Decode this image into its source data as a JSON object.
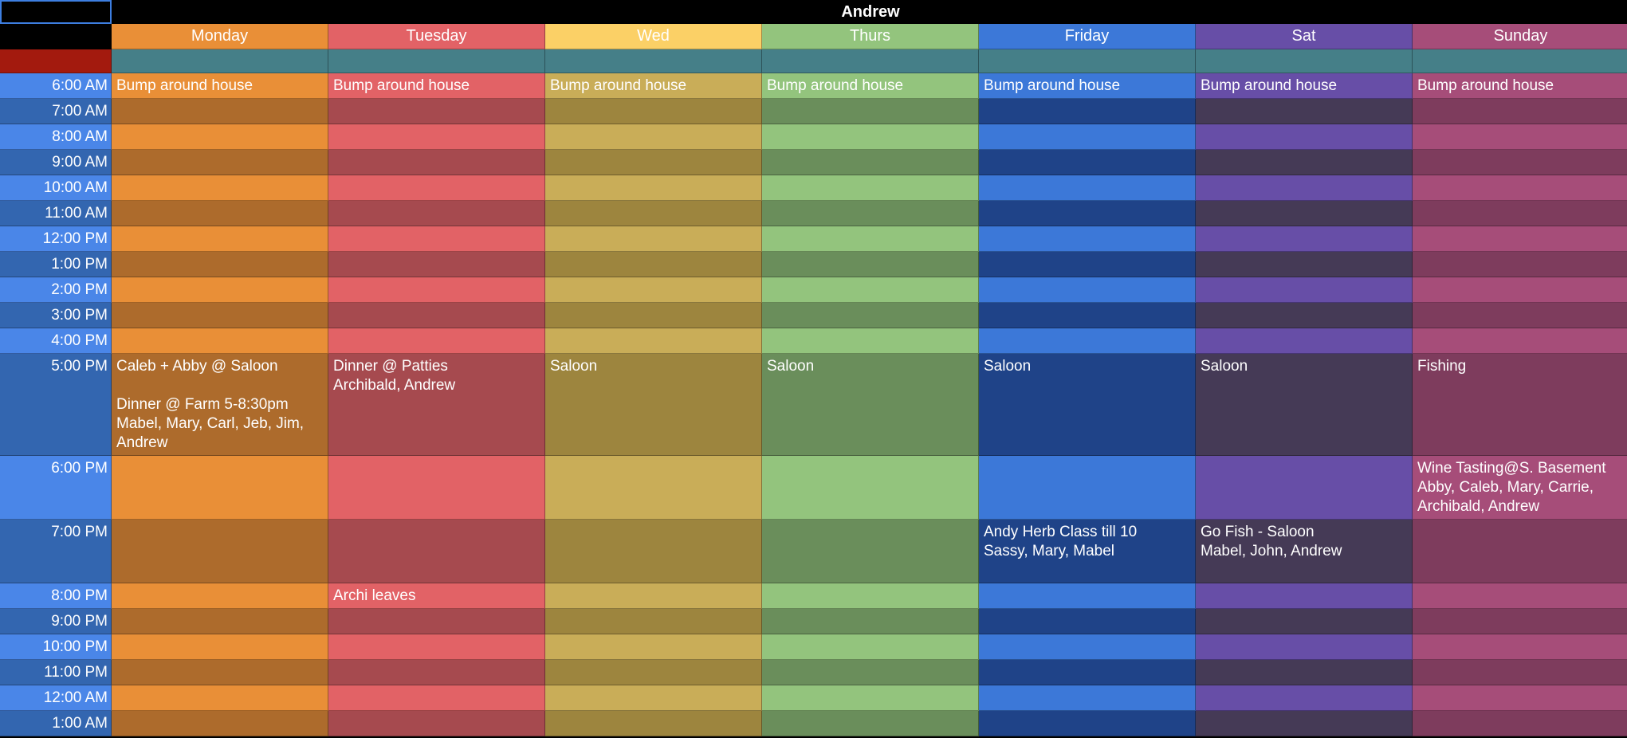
{
  "title": "Andrew",
  "days": [
    {
      "label": "Monday",
      "head": "#e98f37",
      "light": "#e98f37",
      "dark": "#ad6b2c"
    },
    {
      "label": "Tuesday",
      "head": "#e26266",
      "light": "#e26266",
      "dark": "#a64a4f"
    },
    {
      "label": "Wed",
      "head": "#fbd066",
      "light": "#c9ad58",
      "dark": "#9d853e"
    },
    {
      "label": "Thurs",
      "head": "#93c47d",
      "light": "#93c47d",
      "dark": "#6a8e5b"
    },
    {
      "label": "Friday",
      "head": "#3c78d8",
      "light": "#3c78d8",
      "dark": "#1f4388"
    },
    {
      "label": "Sat",
      "head": "#674ea7",
      "light": "#674ea7",
      "dark": "#453a56"
    },
    {
      "label": "Sunday",
      "head": "#a64d79",
      "light": "#a64d79",
      "dark": "#7e3c5d"
    }
  ],
  "time_colors": {
    "light": "#4a86e8",
    "dark": "#3366b0"
  },
  "header_row_colors": {
    "red": "#a31a0e",
    "teal": "#457f88"
  },
  "rows": [
    {
      "time": "6:00 AM",
      "events": [
        "Bump around house",
        "Bump around house",
        "Bump around house",
        "Bump around house",
        "Bump around house",
        "Bump around house",
        "Bump around house"
      ]
    },
    {
      "time": "7:00 AM",
      "events": [
        "",
        "",
        "",
        "",
        "",
        "",
        ""
      ]
    },
    {
      "time": "8:00 AM",
      "events": [
        "",
        "",
        "",
        "",
        "",
        "",
        ""
      ]
    },
    {
      "time": "9:00 AM",
      "events": [
        "",
        "",
        "",
        "",
        "",
        "",
        ""
      ]
    },
    {
      "time": "10:00 AM",
      "events": [
        "",
        "",
        "",
        "",
        "",
        "",
        ""
      ]
    },
    {
      "time": "11:00 AM",
      "events": [
        "",
        "",
        "",
        "",
        "",
        "",
        ""
      ]
    },
    {
      "time": "12:00 PM",
      "events": [
        "",
        "",
        "",
        "",
        "",
        "",
        ""
      ]
    },
    {
      "time": "1:00 PM",
      "events": [
        "",
        "",
        "",
        "",
        "",
        "",
        ""
      ]
    },
    {
      "time": "2:00 PM",
      "events": [
        "",
        "",
        "",
        "",
        "",
        "",
        ""
      ]
    },
    {
      "time": "3:00 PM",
      "events": [
        "",
        "",
        "",
        "",
        "",
        "",
        ""
      ]
    },
    {
      "time": "4:00 PM",
      "events": [
        "",
        "",
        "",
        "",
        "",
        "",
        ""
      ]
    },
    {
      "time": "5:00 PM",
      "events": [
        "Caleb + Abby @ Saloon\n\nDinner @ Farm 5-8:30pm\nMabel, Mary, Carl, Jeb, Jim, Andrew",
        "Dinner @ Patties\nArchibald, Andrew",
        "Saloon",
        "Saloon",
        "Saloon",
        "Saloon",
        "Fishing"
      ]
    },
    {
      "time": "6:00 PM",
      "events": [
        "",
        "",
        "",
        "",
        "",
        "",
        "Wine Tasting@S. Basement\nAbby, Caleb, Mary, Carrie, Archibald, Andrew"
      ]
    },
    {
      "time": "7:00 PM",
      "events": [
        "",
        "",
        "",
        "",
        "Andy Herb Class till 10\nSassy, Mary, Mabel",
        "Go Fish - Saloon\nMabel, John, Andrew",
        ""
      ]
    },
    {
      "time": "8:00 PM",
      "events": [
        "",
        "Archi leaves",
        "",
        "",
        "",
        "",
        ""
      ]
    },
    {
      "time": "9:00 PM",
      "events": [
        "",
        "",
        "",
        "",
        "",
        "",
        ""
      ]
    },
    {
      "time": "10:00 PM",
      "events": [
        "",
        "",
        "",
        "",
        "",
        "",
        ""
      ]
    },
    {
      "time": "11:00 PM",
      "events": [
        "",
        "",
        "",
        "",
        "",
        "",
        ""
      ]
    },
    {
      "time": "12:00 AM",
      "events": [
        "",
        "",
        "",
        "",
        "",
        "",
        ""
      ]
    },
    {
      "time": "1:00 AM",
      "events": [
        "",
        "",
        "",
        "",
        "",
        "",
        ""
      ]
    }
  ]
}
